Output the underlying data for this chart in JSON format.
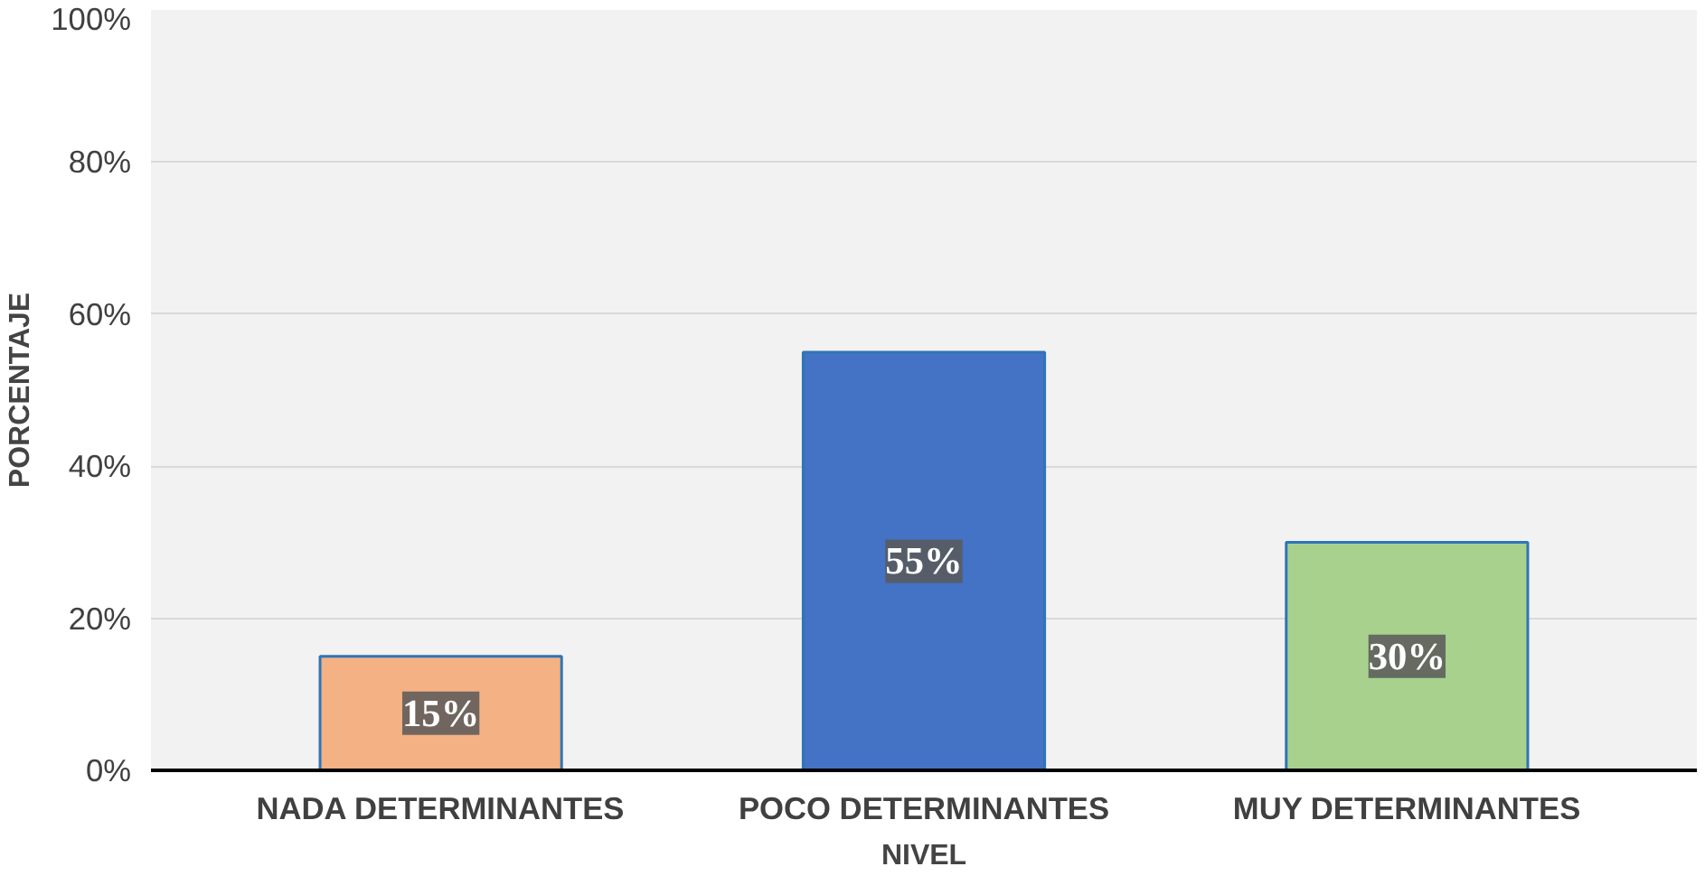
{
  "chart_data": {
    "type": "bar",
    "xlabel": "NIVEL",
    "ylabel": "PORCENTAJE",
    "categories": [
      "NADA DETERMINANTES",
      "POCO DETERMINANTES",
      "MUY DETERMINANTES"
    ],
    "values": [
      15,
      55,
      30
    ],
    "colors": [
      "#f4b183",
      "#4472c4",
      "#a9d18e"
    ],
    "value_labels": [
      "15%",
      "55%",
      "30%"
    ],
    "ylim": [
      0,
      100
    ],
    "yticks": [
      {
        "value": 0,
        "label": "0%"
      },
      {
        "value": 20,
        "label": "20%"
      },
      {
        "value": 40,
        "label": "40%"
      },
      {
        "value": 60,
        "label": "60%"
      },
      {
        "value": 80,
        "label": "80%"
      },
      {
        "value": 100,
        "label": "100%"
      }
    ],
    "grid": "y"
  }
}
